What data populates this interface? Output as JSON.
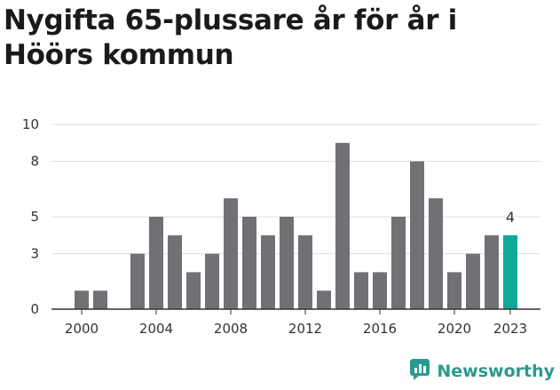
{
  "title": "Nygifta 65-plussare år för år i Höörs kommun",
  "brand": {
    "name": "Newsworthy",
    "icon": "newsworthy-logo-icon"
  },
  "colors": {
    "bar": "#717075",
    "highlight": "#0fa89a",
    "grid": "#dddddd",
    "axis": "#333333",
    "brand": "#2a9a8e"
  },
  "chart_data": {
    "type": "bar",
    "title": "Nygifta 65-plussare år för år i Höörs kommun",
    "xlabel": "",
    "ylabel": "",
    "categories": [
      2000,
      2001,
      2002,
      2003,
      2004,
      2005,
      2006,
      2007,
      2008,
      2009,
      2010,
      2011,
      2012,
      2013,
      2014,
      2015,
      2016,
      2017,
      2018,
      2019,
      2020,
      2021,
      2022,
      2023
    ],
    "values": [
      1,
      1,
      0,
      3,
      5,
      4,
      2,
      3,
      6,
      5,
      4,
      5,
      4,
      1,
      9,
      2,
      2,
      5,
      8,
      6,
      2,
      3,
      4,
      4
    ],
    "highlight_index": 23,
    "highlight_label": "4",
    "ylim": [
      0,
      10
    ],
    "y_ticks": [
      0,
      3,
      5,
      8,
      10
    ],
    "x_ticks": [
      2000,
      2004,
      2008,
      2012,
      2016,
      2020,
      2023
    ],
    "grid": true,
    "legend": "none"
  }
}
